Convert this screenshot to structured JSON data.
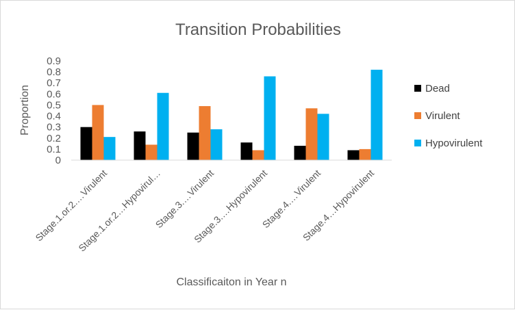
{
  "chart_data": {
    "type": "bar",
    "title": "Transition Probabilities",
    "xlabel": "Classificaiton in Year n",
    "ylabel": "Proportion",
    "ylim": [
      0,
      0.9
    ],
    "yticks": [
      "0",
      "0.1",
      "0.2",
      "0.3",
      "0.4",
      "0.5",
      "0.6",
      "0.7",
      "0.8",
      "0.9"
    ],
    "grid": false,
    "legend_position": "right",
    "categories": [
      "Stage.1.or.2.…Virulent",
      "Stage.1.or.2…Hypovirul…",
      "Stage.3.…Virulent",
      "Stage.3.…Hypovirulent",
      "Stage.4.…Virulent",
      "Stage.4…Hypovirulent"
    ],
    "series": [
      {
        "name": "Dead",
        "color": "#000000",
        "values": [
          0.3,
          0.26,
          0.25,
          0.16,
          0.13,
          0.09
        ]
      },
      {
        "name": "Virulent",
        "color": "#ED7D31",
        "values": [
          0.5,
          0.14,
          0.49,
          0.09,
          0.47,
          0.1
        ]
      },
      {
        "name": "Hypovirulent",
        "color": "#00B0F0",
        "values": [
          0.21,
          0.61,
          0.28,
          0.76,
          0.42,
          0.82
        ]
      }
    ]
  }
}
